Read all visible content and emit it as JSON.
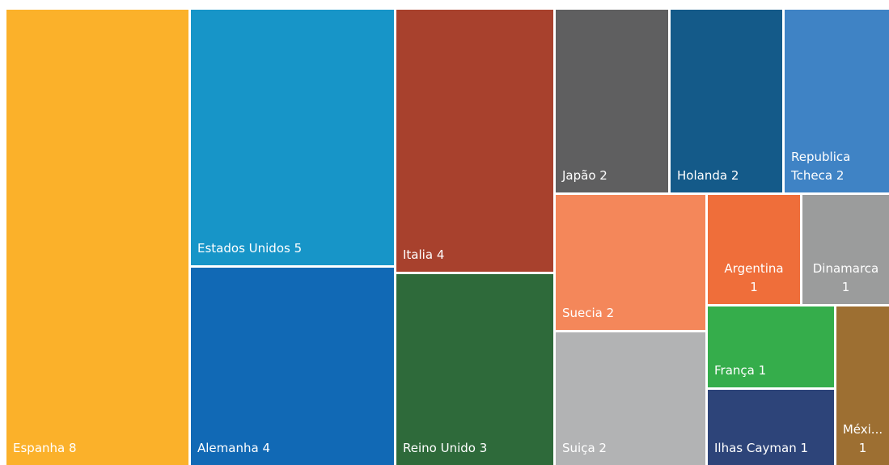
{
  "chart_data": {
    "type": "treemap",
    "categories": [
      "Espanha",
      "Estados Unidos",
      "Alemanha",
      "Italia",
      "Reino Unido",
      "Japão",
      "Holanda",
      "Republica Tcheca",
      "Suecia",
      "Suiça",
      "Argentina",
      "Dinamarca",
      "França",
      "Ilhas Cayman",
      "Méxi..."
    ],
    "values": [
      8,
      5,
      4,
      4,
      3,
      2,
      2,
      2,
      2,
      2,
      1,
      1,
      1,
      1,
      1
    ],
    "colors": [
      "#fbb12a",
      "#1795c8",
      "#1169b5",
      "#a8412d",
      "#2e6a3a",
      "#5f5f60",
      "#145a89",
      "#3f83c5",
      "#f4875a",
      "#b2b3b4",
      "#ef6e3a",
      "#9b9c9c",
      "#35ad4b",
      "#2d4479",
      "#9d6f32"
    ]
  }
}
